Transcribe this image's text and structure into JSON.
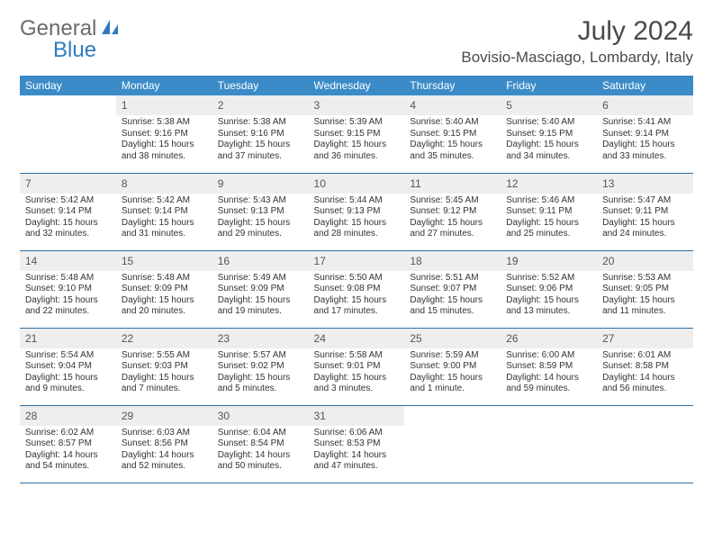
{
  "brand": {
    "part1": "General",
    "part2": "Blue"
  },
  "title": "July 2024",
  "location": "Bovisio-Masciago, Lombardy, Italy",
  "colors": {
    "header_bg": "#3b8bc8",
    "header_text": "#ffffff",
    "daynum_bg": "#eeeeee",
    "row_border": "#2f6fa3",
    "logo_gray": "#6b6b6b",
    "logo_blue": "#2f7bbf"
  },
  "weekdays": [
    "Sunday",
    "Monday",
    "Tuesday",
    "Wednesday",
    "Thursday",
    "Friday",
    "Saturday"
  ],
  "start_offset": 1,
  "days": [
    {
      "n": "1",
      "sunrise": "Sunrise: 5:38 AM",
      "sunset": "Sunset: 9:16 PM",
      "day1": "Daylight: 15 hours",
      "day2": "and 38 minutes."
    },
    {
      "n": "2",
      "sunrise": "Sunrise: 5:38 AM",
      "sunset": "Sunset: 9:16 PM",
      "day1": "Daylight: 15 hours",
      "day2": "and 37 minutes."
    },
    {
      "n": "3",
      "sunrise": "Sunrise: 5:39 AM",
      "sunset": "Sunset: 9:15 PM",
      "day1": "Daylight: 15 hours",
      "day2": "and 36 minutes."
    },
    {
      "n": "4",
      "sunrise": "Sunrise: 5:40 AM",
      "sunset": "Sunset: 9:15 PM",
      "day1": "Daylight: 15 hours",
      "day2": "and 35 minutes."
    },
    {
      "n": "5",
      "sunrise": "Sunrise: 5:40 AM",
      "sunset": "Sunset: 9:15 PM",
      "day1": "Daylight: 15 hours",
      "day2": "and 34 minutes."
    },
    {
      "n": "6",
      "sunrise": "Sunrise: 5:41 AM",
      "sunset": "Sunset: 9:14 PM",
      "day1": "Daylight: 15 hours",
      "day2": "and 33 minutes."
    },
    {
      "n": "7",
      "sunrise": "Sunrise: 5:42 AM",
      "sunset": "Sunset: 9:14 PM",
      "day1": "Daylight: 15 hours",
      "day2": "and 32 minutes."
    },
    {
      "n": "8",
      "sunrise": "Sunrise: 5:42 AM",
      "sunset": "Sunset: 9:14 PM",
      "day1": "Daylight: 15 hours",
      "day2": "and 31 minutes."
    },
    {
      "n": "9",
      "sunrise": "Sunrise: 5:43 AM",
      "sunset": "Sunset: 9:13 PM",
      "day1": "Daylight: 15 hours",
      "day2": "and 29 minutes."
    },
    {
      "n": "10",
      "sunrise": "Sunrise: 5:44 AM",
      "sunset": "Sunset: 9:13 PM",
      "day1": "Daylight: 15 hours",
      "day2": "and 28 minutes."
    },
    {
      "n": "11",
      "sunrise": "Sunrise: 5:45 AM",
      "sunset": "Sunset: 9:12 PM",
      "day1": "Daylight: 15 hours",
      "day2": "and 27 minutes."
    },
    {
      "n": "12",
      "sunrise": "Sunrise: 5:46 AM",
      "sunset": "Sunset: 9:11 PM",
      "day1": "Daylight: 15 hours",
      "day2": "and 25 minutes."
    },
    {
      "n": "13",
      "sunrise": "Sunrise: 5:47 AM",
      "sunset": "Sunset: 9:11 PM",
      "day1": "Daylight: 15 hours",
      "day2": "and 24 minutes."
    },
    {
      "n": "14",
      "sunrise": "Sunrise: 5:48 AM",
      "sunset": "Sunset: 9:10 PM",
      "day1": "Daylight: 15 hours",
      "day2": "and 22 minutes."
    },
    {
      "n": "15",
      "sunrise": "Sunrise: 5:48 AM",
      "sunset": "Sunset: 9:09 PM",
      "day1": "Daylight: 15 hours",
      "day2": "and 20 minutes."
    },
    {
      "n": "16",
      "sunrise": "Sunrise: 5:49 AM",
      "sunset": "Sunset: 9:09 PM",
      "day1": "Daylight: 15 hours",
      "day2": "and 19 minutes."
    },
    {
      "n": "17",
      "sunrise": "Sunrise: 5:50 AM",
      "sunset": "Sunset: 9:08 PM",
      "day1": "Daylight: 15 hours",
      "day2": "and 17 minutes."
    },
    {
      "n": "18",
      "sunrise": "Sunrise: 5:51 AM",
      "sunset": "Sunset: 9:07 PM",
      "day1": "Daylight: 15 hours",
      "day2": "and 15 minutes."
    },
    {
      "n": "19",
      "sunrise": "Sunrise: 5:52 AM",
      "sunset": "Sunset: 9:06 PM",
      "day1": "Daylight: 15 hours",
      "day2": "and 13 minutes."
    },
    {
      "n": "20",
      "sunrise": "Sunrise: 5:53 AM",
      "sunset": "Sunset: 9:05 PM",
      "day1": "Daylight: 15 hours",
      "day2": "and 11 minutes."
    },
    {
      "n": "21",
      "sunrise": "Sunrise: 5:54 AM",
      "sunset": "Sunset: 9:04 PM",
      "day1": "Daylight: 15 hours",
      "day2": "and 9 minutes."
    },
    {
      "n": "22",
      "sunrise": "Sunrise: 5:55 AM",
      "sunset": "Sunset: 9:03 PM",
      "day1": "Daylight: 15 hours",
      "day2": "and 7 minutes."
    },
    {
      "n": "23",
      "sunrise": "Sunrise: 5:57 AM",
      "sunset": "Sunset: 9:02 PM",
      "day1": "Daylight: 15 hours",
      "day2": "and 5 minutes."
    },
    {
      "n": "24",
      "sunrise": "Sunrise: 5:58 AM",
      "sunset": "Sunset: 9:01 PM",
      "day1": "Daylight: 15 hours",
      "day2": "and 3 minutes."
    },
    {
      "n": "25",
      "sunrise": "Sunrise: 5:59 AM",
      "sunset": "Sunset: 9:00 PM",
      "day1": "Daylight: 15 hours",
      "day2": "and 1 minute."
    },
    {
      "n": "26",
      "sunrise": "Sunrise: 6:00 AM",
      "sunset": "Sunset: 8:59 PM",
      "day1": "Daylight: 14 hours",
      "day2": "and 59 minutes."
    },
    {
      "n": "27",
      "sunrise": "Sunrise: 6:01 AM",
      "sunset": "Sunset: 8:58 PM",
      "day1": "Daylight: 14 hours",
      "day2": "and 56 minutes."
    },
    {
      "n": "28",
      "sunrise": "Sunrise: 6:02 AM",
      "sunset": "Sunset: 8:57 PM",
      "day1": "Daylight: 14 hours",
      "day2": "and 54 minutes."
    },
    {
      "n": "29",
      "sunrise": "Sunrise: 6:03 AM",
      "sunset": "Sunset: 8:56 PM",
      "day1": "Daylight: 14 hours",
      "day2": "and 52 minutes."
    },
    {
      "n": "30",
      "sunrise": "Sunrise: 6:04 AM",
      "sunset": "Sunset: 8:54 PM",
      "day1": "Daylight: 14 hours",
      "day2": "and 50 minutes."
    },
    {
      "n": "31",
      "sunrise": "Sunrise: 6:06 AM",
      "sunset": "Sunset: 8:53 PM",
      "day1": "Daylight: 14 hours",
      "day2": "and 47 minutes."
    }
  ]
}
